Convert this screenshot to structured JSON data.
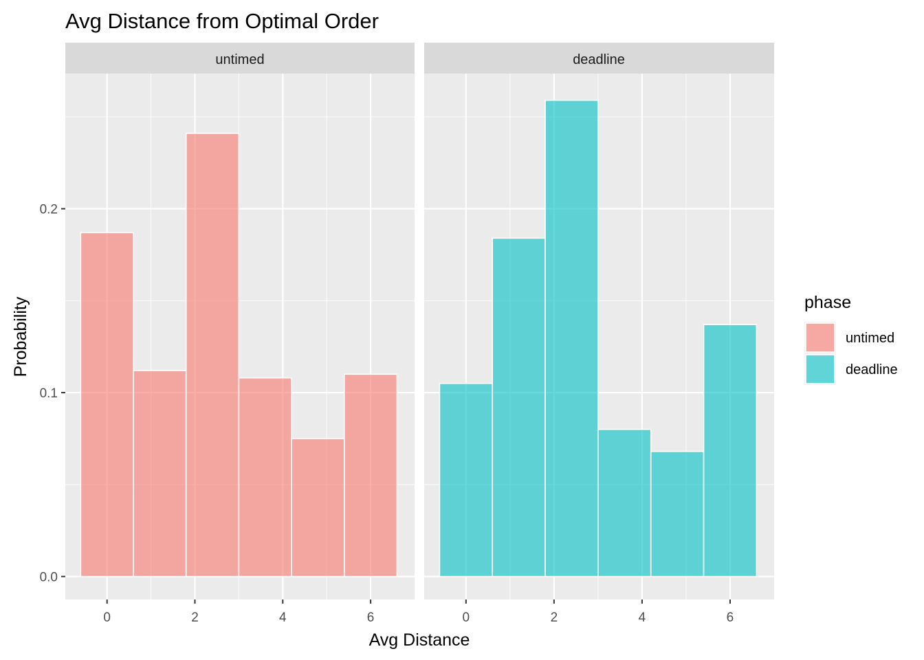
{
  "chart_data": {
    "type": "bar",
    "title": "Avg Distance from Optimal Order",
    "xlabel": "Avg Distance",
    "ylabel": "Probability",
    "x_ticks": [
      0,
      2,
      4,
      6
    ],
    "x_tick_labels": [
      "0",
      "2",
      "4",
      "6"
    ],
    "y_ticks": [
      0.0,
      0.1,
      0.2
    ],
    "y_tick_labels": [
      "0.0",
      "0.1",
      "0.2"
    ],
    "xlim": [
      -0.95,
      7.0
    ],
    "ylim": [
      -0.0125,
      0.2735
    ],
    "bin_edges": [
      -0.6,
      0.6,
      1.8,
      3.0,
      4.2,
      5.4,
      6.6
    ],
    "grid": true,
    "legend": {
      "title": "phase",
      "position": "right",
      "entries": [
        {
          "label": "untimed",
          "color": "#F8766D"
        },
        {
          "label": "deadline",
          "color": "#00BFC4"
        }
      ]
    },
    "facets": [
      {
        "label": "untimed",
        "color": "#F8766D",
        "values": [
          0.187,
          0.112,
          0.241,
          0.108,
          0.075,
          0.11
        ]
      },
      {
        "label": "deadline",
        "color": "#00BFC4",
        "values": [
          0.105,
          0.184,
          0.259,
          0.08,
          0.068,
          0.137
        ]
      }
    ],
    "bar_opacity": 0.6
  }
}
